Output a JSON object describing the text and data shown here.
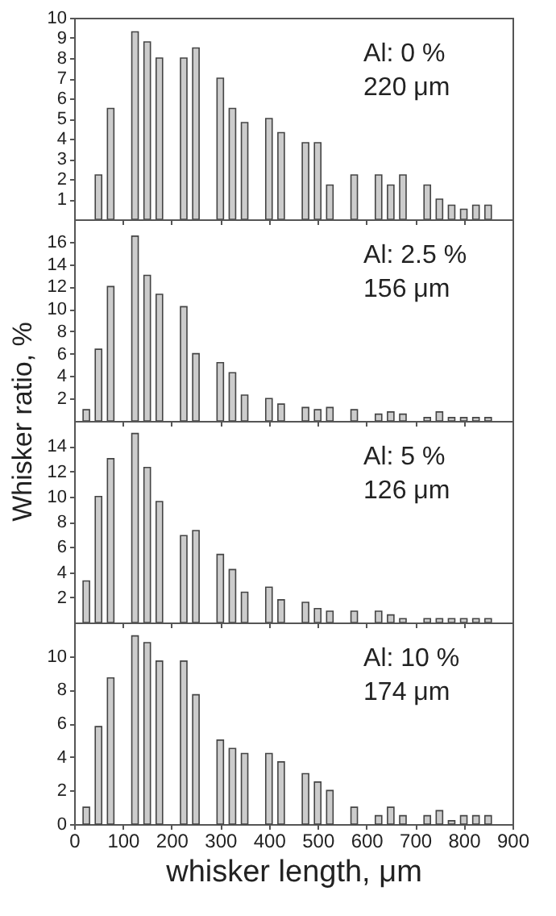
{
  "chart_data": [
    {
      "type": "bar",
      "x": [
        50,
        75,
        125,
        150,
        175,
        225,
        250,
        300,
        325,
        350,
        400,
        425,
        475,
        500,
        525,
        575,
        625,
        650,
        675,
        725,
        750,
        775,
        800,
        825,
        850
      ],
      "values": [
        2.2,
        5.5,
        9.3,
        8.8,
        8.0,
        8.0,
        8.5,
        7.0,
        5.5,
        4.8,
        5.0,
        4.3,
        3.8,
        3.8,
        1.7,
        2.2,
        2.2,
        1.7,
        2.2,
        1.7,
        1.0,
        0.7,
        0.5,
        0.7,
        0.7
      ],
      "color": "#cccccc",
      "xlim": [
        0,
        900
      ],
      "xticks": [
        0,
        100,
        200,
        300,
        400,
        500,
        600,
        700,
        800,
        900
      ],
      "ylim": [
        0,
        10
      ],
      "yticks": [
        1,
        2,
        3,
        4,
        5,
        6,
        7,
        8,
        9,
        10
      ],
      "tick_labels": "y",
      "annotations": [
        "Al: 0 %",
        "220 μm"
      ]
    },
    {
      "type": "bar",
      "x": [
        25,
        50,
        75,
        125,
        150,
        175,
        225,
        250,
        300,
        325,
        350,
        400,
        425,
        475,
        500,
        525,
        575,
        625,
        650,
        675,
        725,
        750,
        775,
        800,
        825,
        850
      ],
      "values": [
        1.0,
        6.4,
        12.0,
        16.5,
        13.0,
        11.3,
        10.2,
        6.0,
        5.2,
        4.3,
        2.3,
        2.0,
        1.5,
        1.2,
        1.0,
        1.2,
        1.0,
        0.6,
        0.8,
        0.6,
        0.3,
        0.8,
        0.3,
        0.3,
        0.3,
        0.3
      ],
      "color": "#cccccc",
      "xlim": [
        0,
        900
      ],
      "xticks": [
        0,
        100,
        200,
        300,
        400,
        500,
        600,
        700,
        800,
        900
      ],
      "ylim": [
        0,
        18
      ],
      "yticks": [
        2,
        4,
        6,
        8,
        10,
        12,
        14,
        16
      ],
      "ylabel": "Whisker ratio, %",
      "tick_labels": "y",
      "annotations": [
        "Al: 2.5 %",
        "156 μm"
      ]
    },
    {
      "type": "bar",
      "x": [
        25,
        50,
        75,
        125,
        150,
        175,
        225,
        250,
        300,
        325,
        350,
        400,
        425,
        475,
        500,
        525,
        575,
        625,
        650,
        675,
        725,
        750,
        775,
        800,
        825,
        850
      ],
      "values": [
        3.3,
        10.0,
        13.0,
        15.0,
        12.3,
        9.6,
        6.9,
        7.3,
        5.4,
        4.2,
        2.4,
        2.8,
        1.8,
        1.6,
        1.1,
        0.9,
        0.9,
        0.9,
        0.6,
        0.3,
        0.3,
        0.3,
        0.3,
        0.3,
        0.3,
        0.3
      ],
      "color": "#cccccc",
      "xlim": [
        0,
        900
      ],
      "xticks": [
        0,
        100,
        200,
        300,
        400,
        500,
        600,
        700,
        800,
        900
      ],
      "ylim": [
        0,
        16
      ],
      "yticks": [
        2,
        4,
        6,
        8,
        10,
        12,
        14
      ],
      "tick_labels": "y",
      "annotations": [
        "Al: 5 %",
        "126 μm"
      ]
    },
    {
      "type": "bar",
      "x": [
        25,
        50,
        75,
        125,
        150,
        175,
        225,
        250,
        300,
        325,
        350,
        400,
        425,
        475,
        500,
        525,
        575,
        625,
        650,
        675,
        725,
        750,
        775,
        800,
        825,
        850
      ],
      "values": [
        1.0,
        5.8,
        8.7,
        11.2,
        10.8,
        9.7,
        9.7,
        7.7,
        5.0,
        4.5,
        4.2,
        4.2,
        3.7,
        3.0,
        2.5,
        2.0,
        1.0,
        0.5,
        1.0,
        0.5,
        0.5,
        0.8,
        0.2,
        0.5,
        0.5,
        0.5
      ],
      "color": "#cccccc",
      "xlim": [
        0,
        900
      ],
      "xticks": [
        0,
        100,
        200,
        300,
        400,
        500,
        600,
        700,
        800,
        900
      ],
      "ylim": [
        0,
        12
      ],
      "yticks": [
        0,
        2,
        4,
        6,
        8,
        10
      ],
      "xlabel": "whisker length,  μm",
      "annotations": [
        "Al: 10 %",
        "174 μm"
      ]
    }
  ]
}
